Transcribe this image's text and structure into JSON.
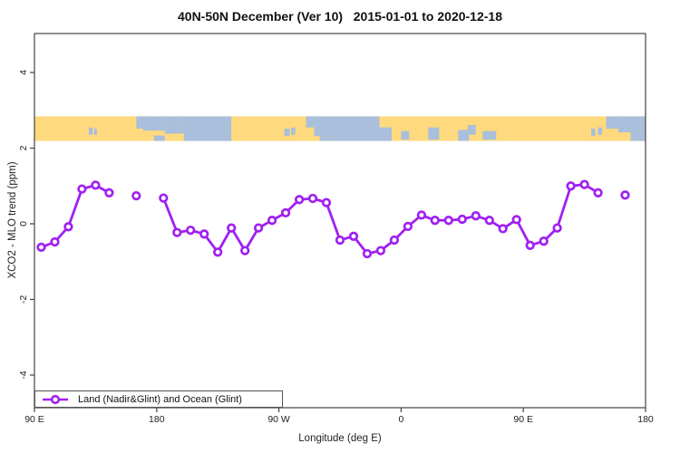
{
  "title": "40N-50N December (Ver 10)   2015-01-01 to 2020-12-18",
  "chart_data": {
    "type": "line",
    "title": "40N-50N December (Ver 10)   2015-01-01 to 2020-12-18",
    "xlabel": "Longitude (deg E)",
    "ylabel": "XCO2 - MLO trend (ppm)",
    "xlim": [
      90,
      540
    ],
    "ylim": [
      -5,
      5
    ],
    "grid": "off",
    "x_axis": {
      "ticks": [
        {
          "lon": 90,
          "label": "90 E"
        },
        {
          "lon": 180,
          "label": "180"
        },
        {
          "lon": 270,
          "label": "90 W"
        },
        {
          "lon": 360,
          "label": "0"
        },
        {
          "lon": 450,
          "label": "90 E"
        },
        {
          "lon": 540,
          "label": "180"
        }
      ]
    },
    "y_axis": {
      "ticks": [
        {
          "value": 4,
          "label": "4"
        },
        {
          "value": 2,
          "label": "2"
        },
        {
          "value": 0,
          "label": "0"
        },
        {
          "value": -2,
          "label": "-2"
        },
        {
          "value": -4,
          "label": "-4"
        }
      ]
    },
    "legend": {
      "label": "Land (Nadir&Glint) and Ocean (Glint)",
      "position": "bottom-left"
    },
    "series_color": "#A020F0",
    "marker": "open-circle",
    "map_band": {
      "description": "world coastline strip for 40N-50N latitude",
      "land_color": "#FFD97E",
      "ocean_color": "#A9BFDB",
      "lon_range": [
        90,
        540
      ],
      "value_top": 2.84,
      "value_bottom": 2.19,
      "ocean_rects": [
        {
          "l0": 130,
          "l1": 133,
          "f0": 0.45,
          "f1": 0.75
        },
        {
          "l0": 134,
          "l1": 136,
          "f0": 0.5,
          "f1": 0.75
        },
        {
          "l0": 165,
          "l1": 171,
          "f0": 0.0,
          "f1": 0.5
        },
        {
          "l0": 170,
          "l1": 186,
          "f0": 0.0,
          "f1": 0.58
        },
        {
          "l0": 178,
          "l1": 186,
          "f0": 0.78,
          "f1": 1.0
        },
        {
          "l0": 186,
          "l1": 200,
          "f0": 0.0,
          "f1": 0.7
        },
        {
          "l0": 200,
          "l1": 235,
          "f0": 0.0,
          "f1": 1.0
        },
        {
          "l0": 274,
          "l1": 278,
          "f0": 0.5,
          "f1": 0.8
        },
        {
          "l0": 279,
          "l1": 282,
          "f0": 0.45,
          "f1": 0.75
        },
        {
          "l0": 290,
          "l1": 296,
          "f0": 0.0,
          "f1": 0.45
        },
        {
          "l0": 296,
          "l1": 315,
          "f0": 0.0,
          "f1": 0.8
        },
        {
          "l0": 300,
          "l1": 315,
          "f0": 0.8,
          "f1": 1.0
        },
        {
          "l0": 315,
          "l1": 344,
          "f0": 0.0,
          "f1": 1.0
        },
        {
          "l0": 344,
          "l1": 353,
          "f0": 0.45,
          "f1": 1.0
        },
        {
          "l0": 360,
          "l1": 366,
          "f0": 0.6,
          "f1": 0.95
        },
        {
          "l0": 380,
          "l1": 388,
          "f0": 0.45,
          "f1": 0.95
        },
        {
          "l0": 402,
          "l1": 410,
          "f0": 0.55,
          "f1": 1.0
        },
        {
          "l0": 409,
          "l1": 415,
          "f0": 0.35,
          "f1": 0.75
        },
        {
          "l0": 420,
          "l1": 430,
          "f0": 0.6,
          "f1": 0.95
        },
        {
          "l0": 500,
          "l1": 503,
          "f0": 0.5,
          "f1": 0.8
        },
        {
          "l0": 505,
          "l1": 508,
          "f0": 0.45,
          "f1": 0.75
        },
        {
          "l0": 511,
          "l1": 520,
          "f0": 0.0,
          "f1": 0.5
        },
        {
          "l0": 520,
          "l1": 540,
          "f0": 0.0,
          "f1": 0.65
        },
        {
          "l0": 529,
          "l1": 540,
          "f0": 0.65,
          "f1": 1.0
        }
      ]
    },
    "series": [
      {
        "name": "Land (Nadir&Glint) and Ocean (Glint)",
        "segments": [
          {
            "lon": [
              95,
              105,
              115,
              125,
              135,
              145
            ],
            "val": [
              -0.62,
              -0.48,
              -0.08,
              0.92,
              1.02,
              0.82
            ]
          },
          {
            "lon": [
              165
            ],
            "val": [
              0.74
            ]
          },
          {
            "lon": [
              185,
              195,
              205,
              215,
              225,
              235,
              245,
              255,
              265,
              275,
              285,
              295,
              305,
              315,
              325,
              335,
              345,
              355,
              365,
              375,
              385,
              395,
              405,
              415,
              425,
              435,
              445,
              455,
              465,
              475,
              485,
              495,
              505
            ],
            "val": [
              0.68,
              -0.23,
              -0.17,
              -0.27,
              -0.75,
              -0.11,
              -0.71,
              -0.11,
              0.09,
              0.29,
              0.64,
              0.67,
              0.56,
              -0.43,
              -0.33,
              -0.79,
              -0.71,
              -0.43,
              -0.07,
              0.23,
              0.09,
              0.09,
              0.12,
              0.21,
              0.09,
              -0.13,
              0.11,
              -0.57,
              -0.46,
              -0.11,
              1.0,
              1.04,
              0.82
            ]
          },
          {
            "lon": [
              525
            ],
            "val": [
              0.76
            ]
          }
        ]
      }
    ]
  }
}
